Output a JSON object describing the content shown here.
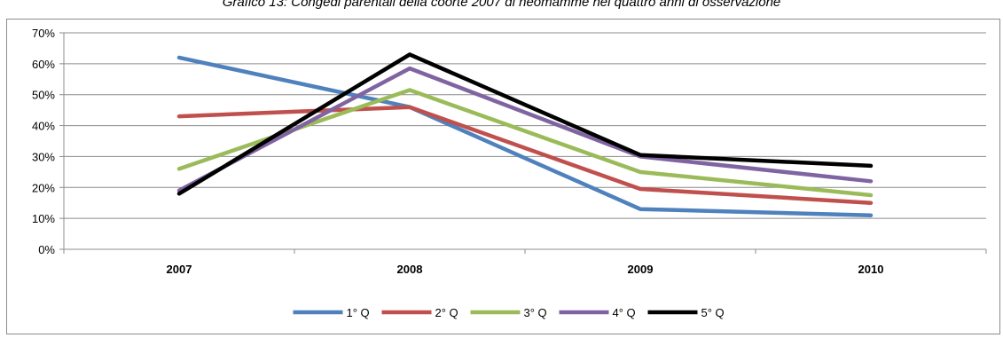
{
  "chart_data": {
    "type": "line",
    "title": "Grafico 13: Congedi parentali della coorte 2007 di neomamme nei quattro anni di osservazione",
    "categories": [
      "2007",
      "2008",
      "2009",
      "2010"
    ],
    "ylim": [
      0,
      70
    ],
    "yticks": [
      "0%",
      "10%",
      "20%",
      "30%",
      "40%",
      "50%",
      "60%",
      "70%"
    ],
    "grid": true,
    "legend_position": "bottom",
    "series": [
      {
        "name": "1° Q",
        "color": "#4f81bd",
        "values": [
          62,
          46,
          13,
          11
        ]
      },
      {
        "name": "2° Q",
        "color": "#c0504d",
        "values": [
          43,
          46,
          19.5,
          15
        ]
      },
      {
        "name": "3° Q",
        "color": "#9bbb59",
        "values": [
          26,
          51.5,
          25,
          17.5
        ]
      },
      {
        "name": "4° Q",
        "color": "#8064a2",
        "values": [
          19,
          58.5,
          30,
          22
        ]
      },
      {
        "name": "5° Q",
        "color": "#000000",
        "values": [
          18,
          63,
          30.5,
          27
        ]
      }
    ]
  }
}
